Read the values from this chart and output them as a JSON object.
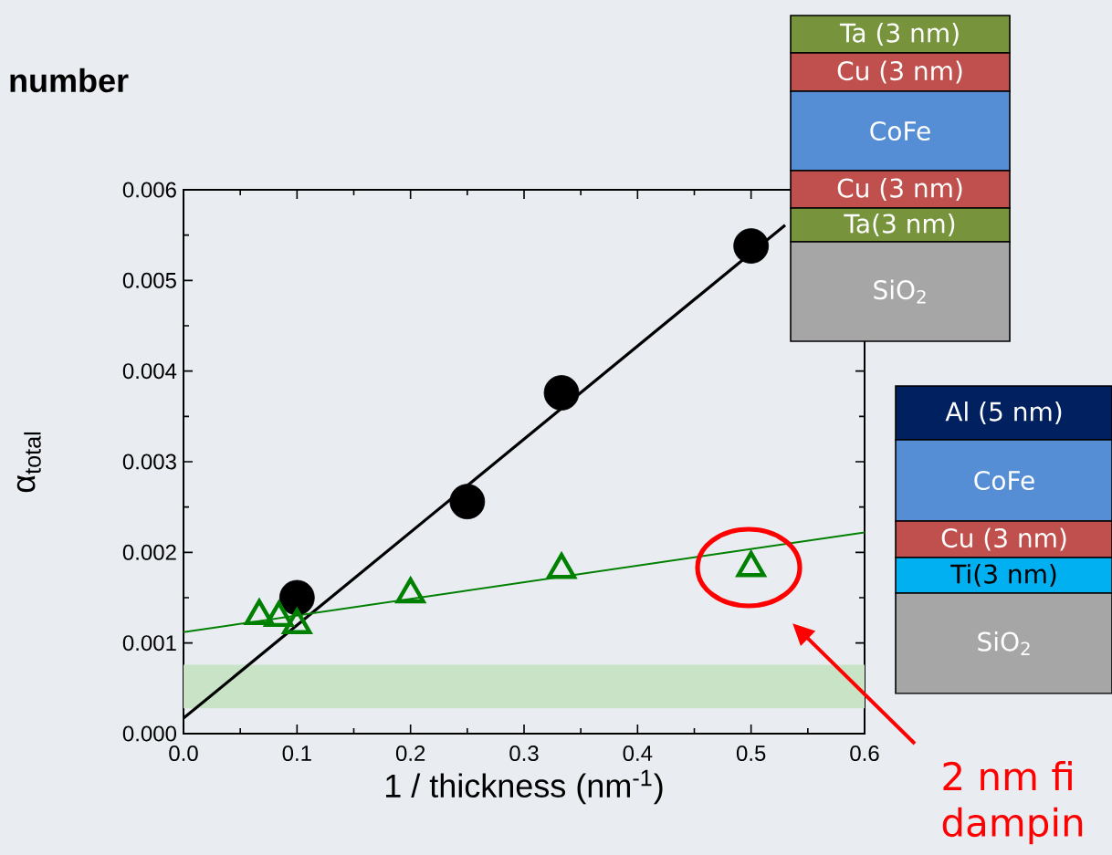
{
  "chart_data": {
    "type": "scatter",
    "title": "number",
    "xlabel": "1 / thickness (nm$^{-1}$)",
    "ylabel": "α$_{total}$",
    "xlim": [
      0,
      0.6
    ],
    "ylim": [
      0,
      0.006
    ],
    "xticks": [
      {
        "value": 0,
        "label": "0.0"
      },
      0.1,
      0.2,
      0.3,
      0.4,
      0.5,
      0.6
    ],
    "yticks": [
      {
        "value": 0,
        "label": "0.000"
      },
      0.001,
      0.002,
      0.003,
      0.004,
      0.005,
      0.006
    ],
    "series": [
      {
        "color": "#000000",
        "marker": "circle",
        "x": [
          0.1,
          0.25,
          0.333,
          0.5
        ],
        "values": [
          0.0015,
          0.00256,
          0.00376,
          0.00538
        ]
      },
      {
        "type": "line",
        "color": "#000000",
        "marker": "none",
        "x": [
          0,
          0.53
        ],
        "values": [
          0.00017,
          0.00561
        ]
      },
      {
        "color": "#008000",
        "marker": "triangle",
        "x": [
          0.0667,
          0.084,
          0.1,
          0.2,
          0.333,
          0.5
        ],
        "values": [
          0.0013,
          0.00128,
          0.0012,
          0.00154,
          0.00181,
          0.00183
        ]
      },
      {
        "type": "line",
        "color": "#008000",
        "marker": "none",
        "x": [
          0,
          0.6
        ],
        "values": [
          0.00112,
          0.00222
        ]
      }
    ],
    "bands": [
      {
        "axis": "y",
        "from": 0.00028,
        "to": 0.00076,
        "color": "#c8e3c6"
      }
    ],
    "grid": false,
    "annotations": [
      "2 nm fi",
      "dampin",
      "Ta (3 nm)",
      "Cu (3 nm)",
      "CoFe",
      "Cu (3 nm)",
      "Ta(3 nm)",
      "SiO$_{2}$",
      "Al (5 nm)",
      "CoFe",
      "Cu (3 nm)",
      "Ti(3 nm)",
      "SiO$_{2}$"
    ]
  }
}
